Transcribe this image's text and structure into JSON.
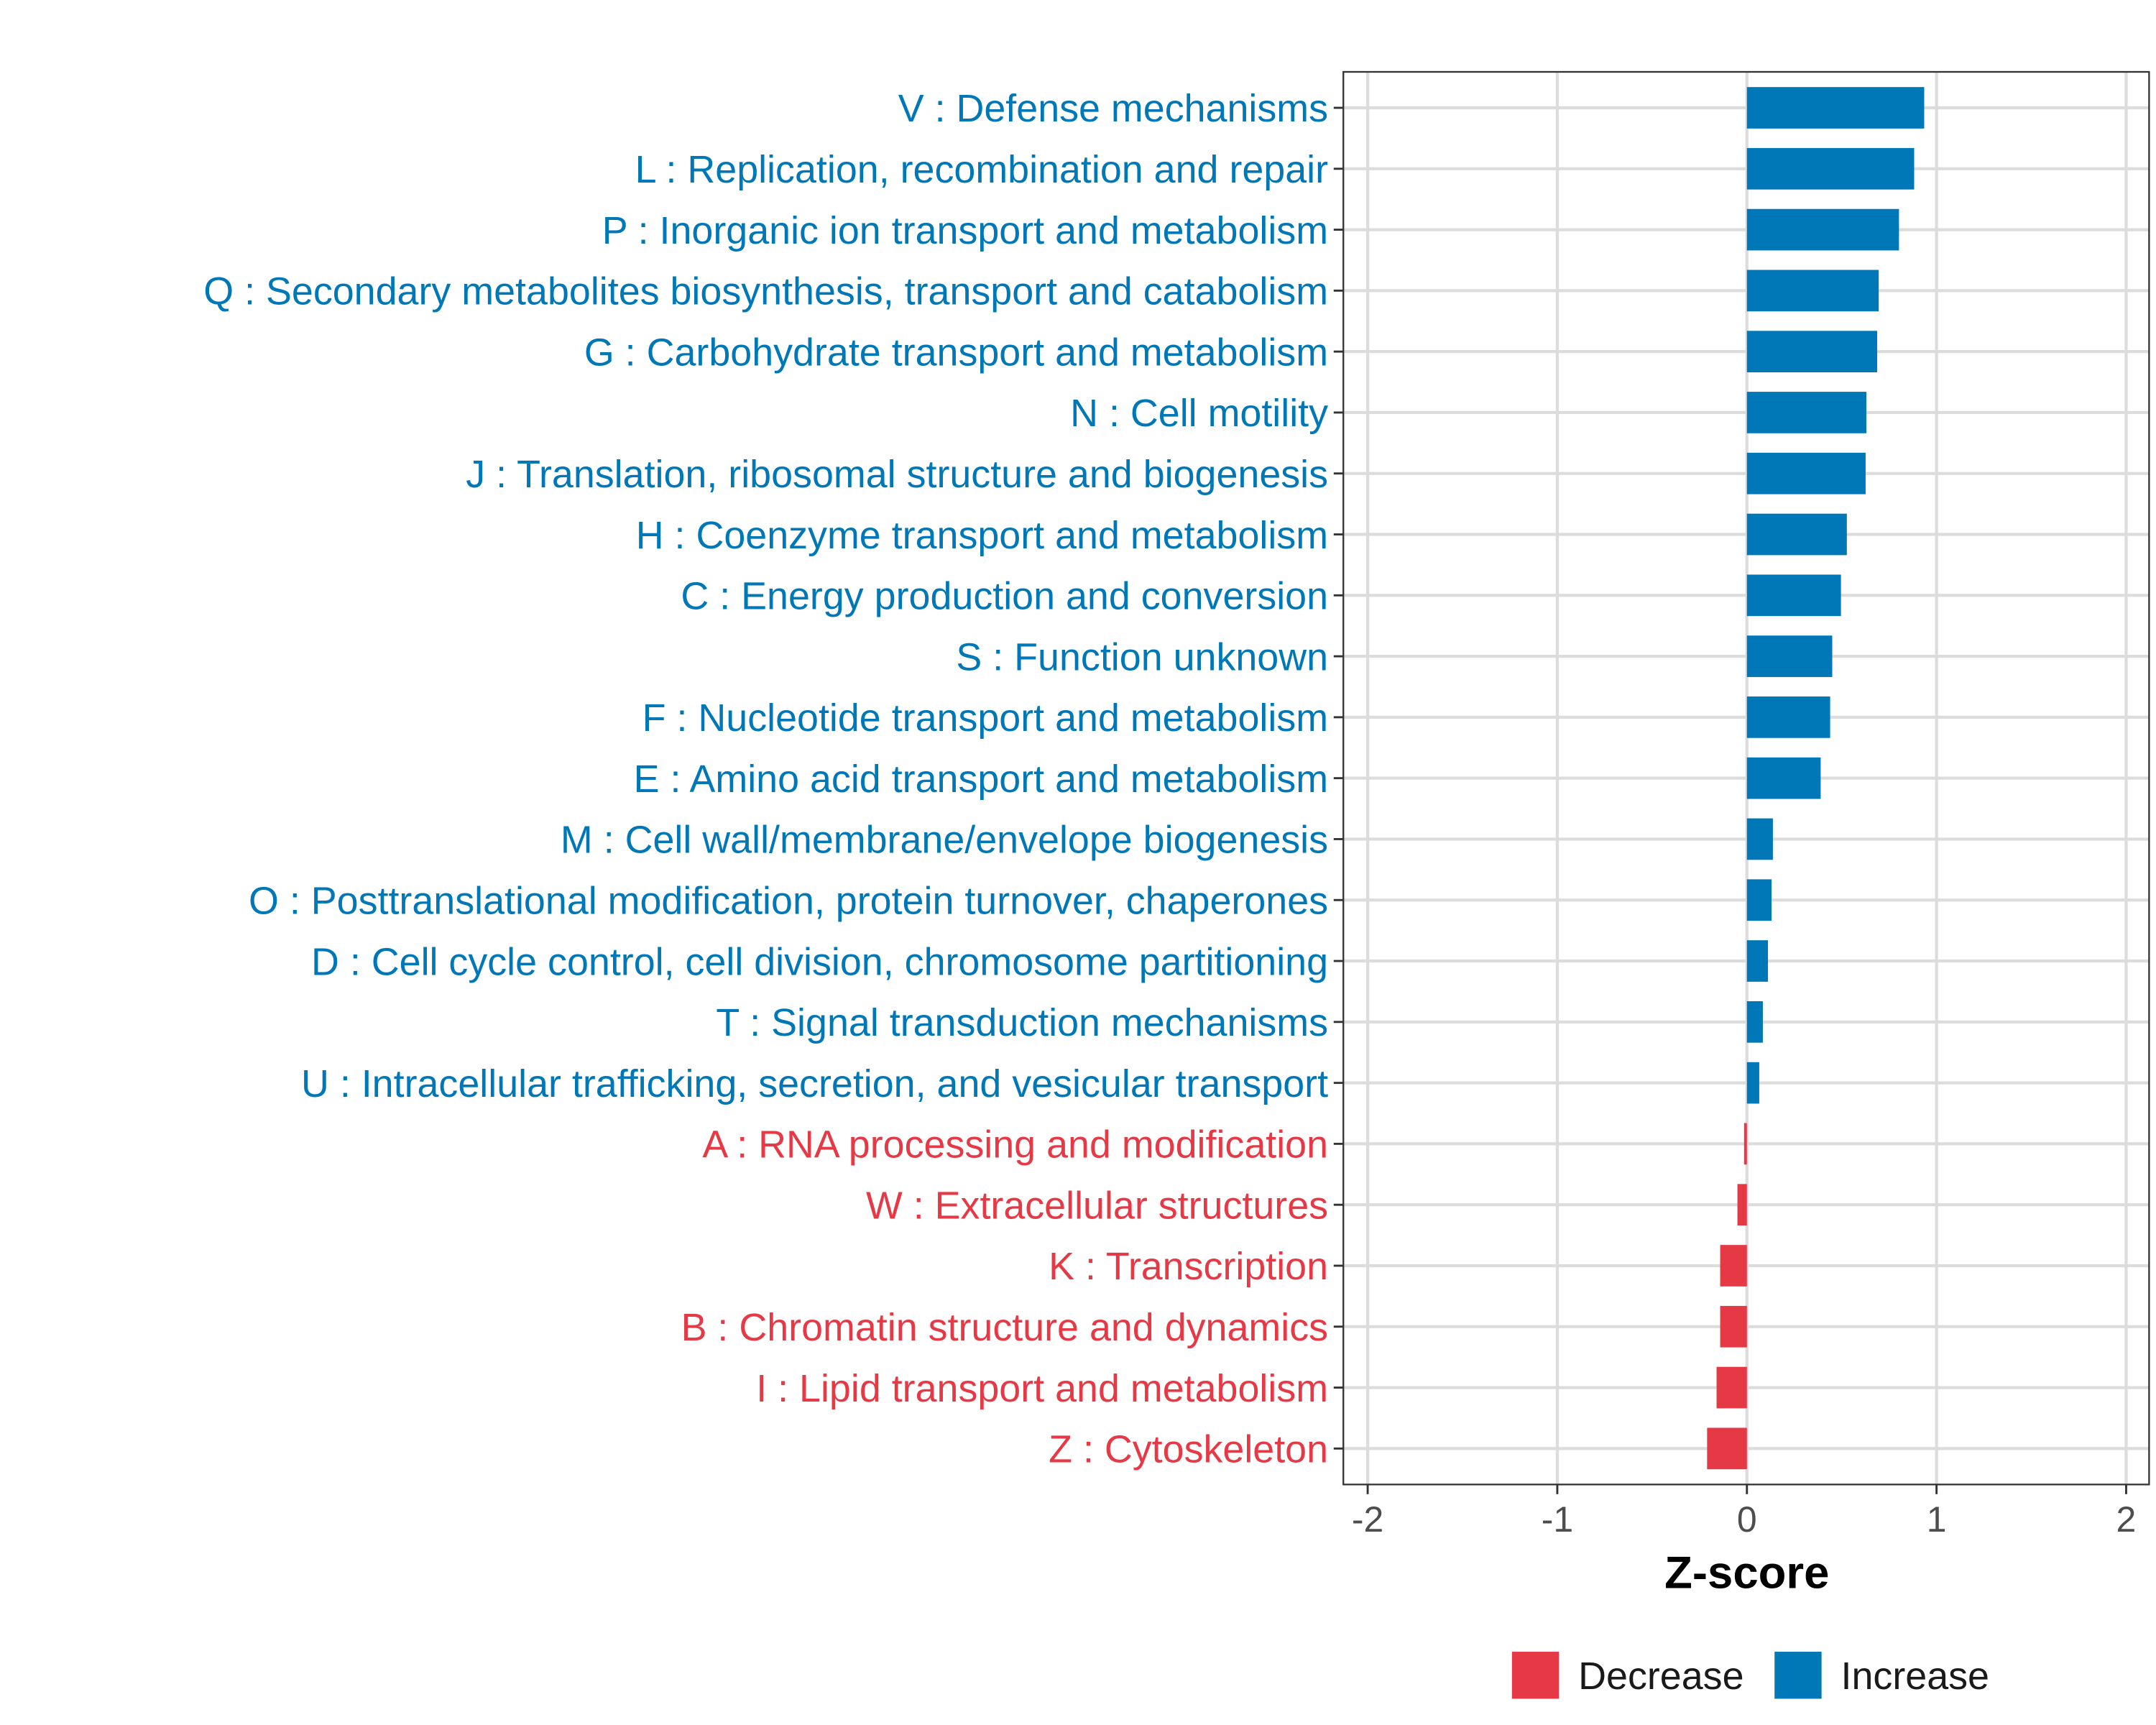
{
  "chart_data": {
    "type": "bar",
    "orientation": "horizontal",
    "title": "",
    "xlabel": "Z-score",
    "ylabel": "",
    "xlim": [
      -2.07,
      2.12
    ],
    "xticks": [
      -2,
      -1,
      0,
      1,
      2
    ],
    "xtick_labels": [
      "-2",
      "-1",
      "0",
      "1",
      "2"
    ],
    "grid": true,
    "legend_position": "bottom",
    "legend": [
      {
        "label": "Decrease",
        "color": "#E63946"
      },
      {
        "label": "Increase",
        "color": "#0077B6"
      }
    ],
    "categories": [
      "V : Defense mechanisms",
      "L : Replication, recombination and repair",
      "P : Inorganic ion transport and metabolism",
      "Q : Secondary metabolites biosynthesis, transport and catabolism",
      "G : Carbohydrate transport and metabolism",
      "N : Cell motility",
      "J : Translation, ribosomal structure and biogenesis",
      "H : Coenzyme transport and metabolism",
      "C : Energy production and conversion",
      "S : Function unknown",
      "F : Nucleotide transport and metabolism",
      "E : Amino acid transport and metabolism",
      "M : Cell wall/membrane/envelope biogenesis",
      "O : Posttranslational modification, protein turnover, chaperones",
      "D : Cell cycle control, cell division, chromosome partitioning",
      "T : Signal transduction mechanisms",
      "U : Intracellular trafficking, secretion, and vesicular transport",
      "A : RNA processing and modification",
      "W : Extracellular structures",
      "K : Transcription",
      "B : Chromatin structure and dynamics",
      "I : Lipid transport and metabolism",
      "Z : Cytoskeleton"
    ],
    "values": [
      0.935,
      0.882,
      0.802,
      0.695,
      0.687,
      0.63,
      0.626,
      0.527,
      0.496,
      0.45,
      0.439,
      0.389,
      0.137,
      0.13,
      0.111,
      0.084,
      0.065,
      -0.015,
      -0.05,
      -0.141,
      -0.141,
      -0.16,
      -0.21
    ],
    "colors": {
      "increase": "#0077B6",
      "decrease": "#E63946"
    }
  }
}
